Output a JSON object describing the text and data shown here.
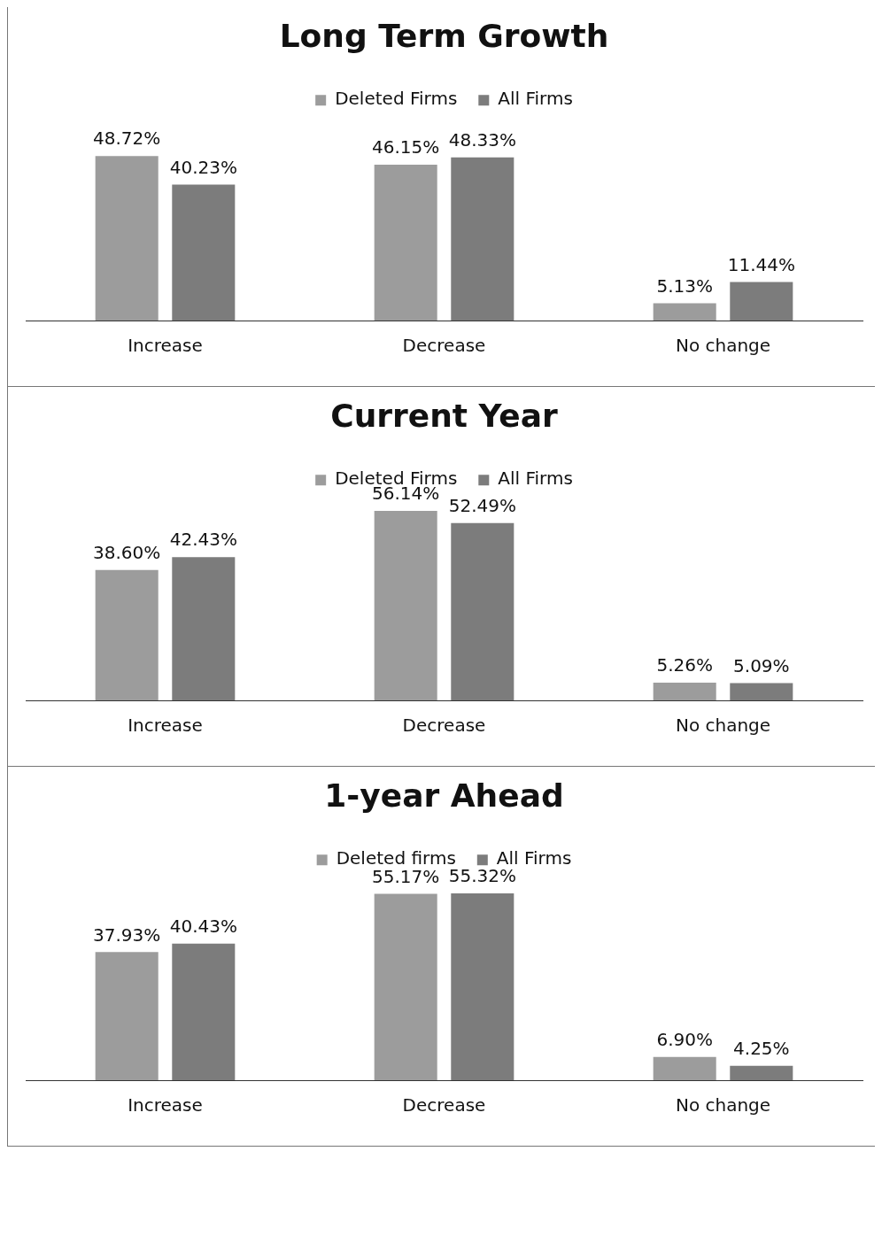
{
  "chart_data": [
    {
      "type": "bar",
      "title": "Long Term Growth",
      "categories": [
        "Increase",
        "Decrease",
        "No change"
      ],
      "legend": "top",
      "grid": false,
      "series": [
        {
          "name": "Deleted Firms",
          "color": "#9c9c9c",
          "values": [
            48.72,
            46.15,
            5.13
          ],
          "value_labels": [
            "48.72%",
            "46.15%",
            "5.13%"
          ]
        },
        {
          "name": "All Firms",
          "color": "#7c7c7c",
          "values": [
            40.23,
            48.33,
            11.44
          ],
          "value_labels": [
            "40.23%",
            "48.33%",
            "11.44%"
          ]
        }
      ]
    },
    {
      "type": "bar",
      "title": "Current Year",
      "categories": [
        "Increase",
        "Decrease",
        "No change"
      ],
      "legend": "top",
      "grid": false,
      "series": [
        {
          "name": "Deleted Firms",
          "color": "#9c9c9c",
          "values": [
            38.6,
            56.14,
            5.26
          ],
          "value_labels": [
            "38.60%",
            "56.14%",
            "5.26%"
          ]
        },
        {
          "name": "All Firms",
          "color": "#7c7c7c",
          "values": [
            42.43,
            52.49,
            5.09
          ],
          "value_labels": [
            "42.43%",
            "52.49%",
            "5.09%"
          ]
        }
      ]
    },
    {
      "type": "bar",
      "title": "1-year Ahead",
      "categories": [
        "Increase",
        "Decrease",
        "No change"
      ],
      "legend": "top",
      "grid": false,
      "series": [
        {
          "name": "Deleted firms",
          "color": "#9c9c9c",
          "values": [
            37.93,
            55.17,
            6.9
          ],
          "value_labels": [
            "37.93%",
            "55.17%",
            "6.90%"
          ]
        },
        {
          "name": "All Firms",
          "color": "#7c7c7c",
          "values": [
            40.43,
            55.32,
            4.25
          ],
          "value_labels": [
            "40.43%",
            "55.32%",
            "4.25%"
          ]
        }
      ]
    }
  ]
}
